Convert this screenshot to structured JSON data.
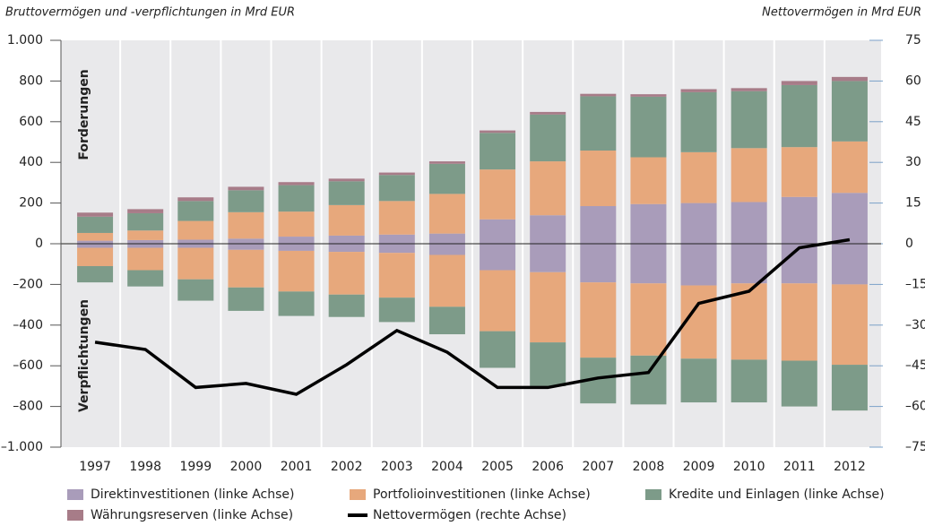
{
  "chart_data": {
    "type": "bar",
    "left_header": "Bruttovermögen und -verpflichtungen in Mrd EUR",
    "right_header": "Nettovermögen in Mrd EUR",
    "annotations": [
      "Forderungen",
      "Verpflichtungen"
    ],
    "categories": [
      "1997",
      "1998",
      "1999",
      "2000",
      "2001",
      "2002",
      "2003",
      "2004",
      "2005",
      "2006",
      "2007",
      "2008",
      "2009",
      "2010",
      "2011",
      "2012"
    ],
    "ylim": [
      -1000,
      1000
    ],
    "yticks": [
      {
        "value": -1000,
        "label": "–1.000"
      },
      {
        "value": -800,
        "label": "–800"
      },
      {
        "value": -600,
        "label": "–600"
      },
      {
        "value": -400,
        "label": "–400"
      },
      {
        "value": -200,
        "label": "–200"
      },
      0,
      200,
      400,
      600,
      800,
      {
        "value": 1000,
        "label": "1.000"
      }
    ],
    "y2lim": [
      -75,
      75
    ],
    "y2ticks": [
      {
        "value": -75,
        "label": "–75"
      },
      {
        "value": -60,
        "label": "–60"
      },
      {
        "value": -45,
        "label": "–45"
      },
      {
        "value": -30,
        "label": "–30"
      },
      {
        "value": -15,
        "label": "–15"
      },
      0,
      15,
      30,
      45,
      60,
      75
    ],
    "series": [
      {
        "name": "Direktinvestitionen (linke Achse)",
        "color": "#a99cba",
        "values": [
          15,
          18,
          20,
          25,
          35,
          40,
          45,
          50,
          120,
          140,
          185,
          195,
          200,
          205,
          230,
          250
        ],
        "liabilities": [
          -20,
          -20,
          -20,
          -30,
          -35,
          -40,
          -45,
          -55,
          -130,
          -140,
          -190,
          -195,
          -205,
          -195,
          -195,
          -200
        ]
      },
      {
        "name": "Portfolioinvestitionen (linke Achse)",
        "color": "#e7a87c",
        "values": [
          38,
          47,
          92,
          130,
          123,
          150,
          165,
          195,
          245,
          265,
          273,
          230,
          250,
          265,
          245,
          253
        ],
        "liabilities": [
          -90,
          -110,
          -155,
          -185,
          -200,
          -210,
          -220,
          -255,
          -300,
          -345,
          -370,
          -355,
          -360,
          -375,
          -380,
          -395
        ]
      },
      {
        "name": "Kredite und Einlagen (linke Achse)",
        "color": "#7d9b89",
        "values": [
          80,
          85,
          98,
          108,
          130,
          117,
          128,
          148,
          180,
          230,
          267,
          298,
          295,
          280,
          305,
          297
        ],
        "liabilities": [
          -80,
          -80,
          -105,
          -115,
          -120,
          -110,
          -120,
          -135,
          -180,
          -215,
          -225,
          -240,
          -215,
          -210,
          -225,
          -225
        ]
      },
      {
        "name": "Währungsreserven (linke Achse)",
        "color": "#a77c88",
        "values": [
          20,
          20,
          18,
          17,
          15,
          13,
          12,
          12,
          12,
          13,
          12,
          12,
          15,
          15,
          20,
          20
        ]
      },
      {
        "name": "Nettovermögen (rechte Achse)",
        "color": "#000000",
        "axis": "y2",
        "type": "line",
        "values": [
          -36.3,
          -39,
          -53,
          -51.5,
          -55.5,
          -44.6,
          -32,
          -40,
          -53,
          -53,
          -49.5,
          -47.5,
          -22,
          -17.5,
          -1.5,
          1.5
        ]
      }
    ]
  }
}
